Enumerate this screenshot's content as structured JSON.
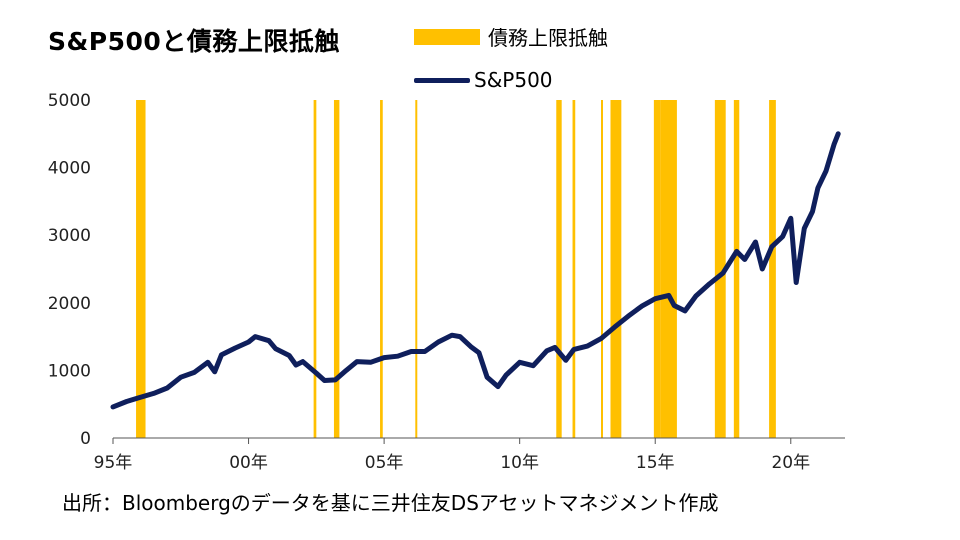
{
  "title": "S&P500と債務上限抵触",
  "source": "出所：Bloombergのデータを基に三井住友DSアセットマネジメント作成",
  "colors": {
    "debt_limit": "#FFC000",
    "sp500": "#0F1F5C",
    "axis": "#555555"
  },
  "chart_data": {
    "type": "line",
    "title": "S&P500と債務上限抵触",
    "xlabel": "",
    "ylabel": "",
    "ylim": [
      0,
      5000
    ],
    "xlim": [
      1995.0,
      2022.0
    ],
    "grid": false,
    "legend_position": "top",
    "y_ticks": [
      "0",
      "1000",
      "2000",
      "3000",
      "4000",
      "5000"
    ],
    "y_tick_values": [
      0,
      1000,
      2000,
      3000,
      4000,
      5000
    ],
    "x_ticks": [
      "95年",
      "00年",
      "05年",
      "10年",
      "15年",
      "20年"
    ],
    "x_tick_values": [
      1995,
      2000,
      2005,
      2010,
      2015,
      2020
    ],
    "series": [
      {
        "name": "S&P500",
        "type": "line",
        "x": [
          1995.0,
          1995.5,
          1996.0,
          1996.5,
          1997.0,
          1997.5,
          1998.0,
          1998.5,
          1998.75,
          1999.0,
          1999.5,
          2000.0,
          2000.25,
          2000.75,
          2001.0,
          2001.5,
          2001.75,
          2002.0,
          2002.5,
          2002.8,
          2003.2,
          2003.6,
          2004.0,
          2004.5,
          2005.0,
          2005.5,
          2006.0,
          2006.5,
          2007.0,
          2007.5,
          2007.8,
          2008.2,
          2008.5,
          2008.8,
          2009.2,
          2009.5,
          2010.0,
          2010.5,
          2011.0,
          2011.3,
          2011.7,
          2012.0,
          2012.5,
          2013.0,
          2013.5,
          2014.0,
          2014.5,
          2015.0,
          2015.5,
          2015.7,
          2016.1,
          2016.5,
          2017.0,
          2017.5,
          2018.0,
          2018.3,
          2018.7,
          2018.95,
          2019.3,
          2019.7,
          2020.0,
          2020.2,
          2020.5,
          2020.8,
          2021.0,
          2021.3,
          2021.6,
          2021.75
        ],
        "y": [
          460,
          540,
          600,
          660,
          740,
          900,
          970,
          1120,
          980,
          1230,
          1330,
          1420,
          1500,
          1440,
          1320,
          1220,
          1080,
          1130,
          960,
          850,
          860,
          1000,
          1130,
          1120,
          1190,
          1210,
          1280,
          1280,
          1420,
          1520,
          1500,
          1350,
          1260,
          900,
          760,
          930,
          1120,
          1070,
          1290,
          1340,
          1150,
          1310,
          1360,
          1470,
          1640,
          1800,
          1950,
          2060,
          2110,
          1960,
          1880,
          2100,
          2280,
          2440,
          2760,
          2640,
          2900,
          2500,
          2830,
          2980,
          3250,
          2300,
          3100,
          3350,
          3700,
          3950,
          4350,
          4500
        ]
      },
      {
        "name": "債務上限抵触",
        "type": "span",
        "intervals": [
          [
            1995.85,
            1996.2
          ],
          [
            2002.4,
            2002.5
          ],
          [
            2003.15,
            2003.35
          ],
          [
            2004.85,
            2004.95
          ],
          [
            2006.15,
            2006.2
          ],
          [
            2011.35,
            2011.55
          ],
          [
            2011.95,
            2012.05
          ],
          [
            2013.0,
            2013.07
          ],
          [
            2013.35,
            2013.75
          ],
          [
            2014.95,
            2015.2
          ],
          [
            2015.2,
            2015.8
          ],
          [
            2017.2,
            2017.6
          ],
          [
            2017.9,
            2018.1
          ],
          [
            2019.2,
            2019.45
          ]
        ]
      }
    ]
  }
}
